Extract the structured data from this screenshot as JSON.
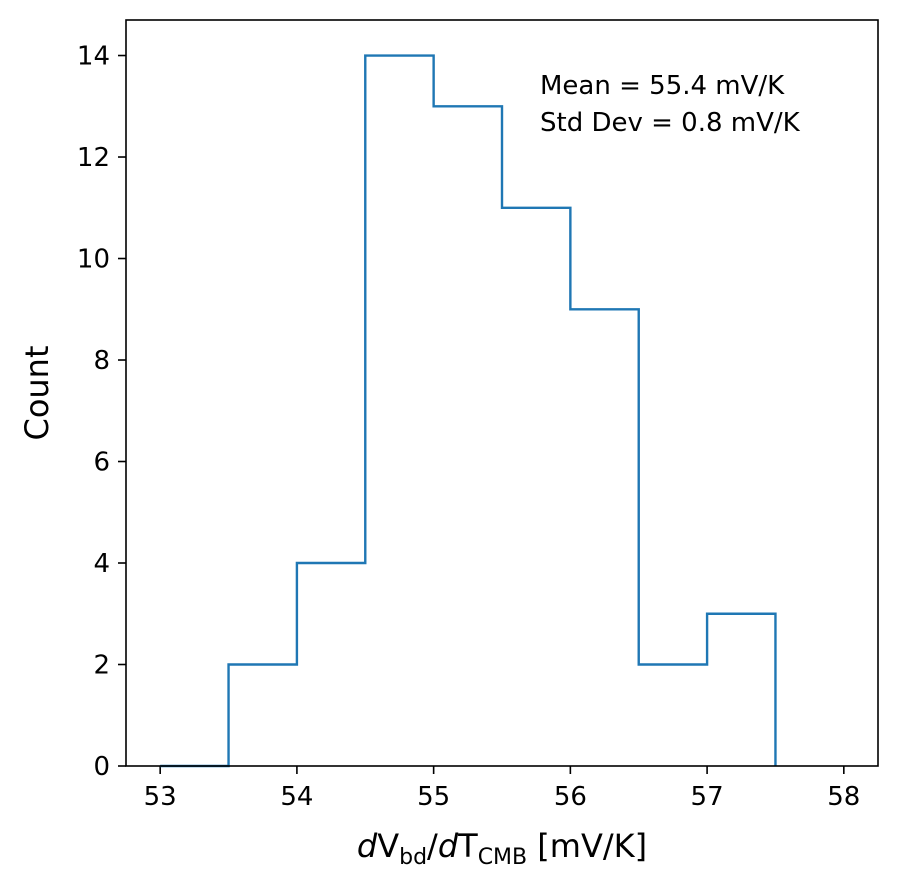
{
  "chart_data": {
    "type": "histogram",
    "bin_edges": [
      53.0,
      53.5,
      54.0,
      54.5,
      55.0,
      55.5,
      56.0,
      56.5,
      57.0,
      57.5
    ],
    "counts": [
      0,
      2,
      4,
      14,
      13,
      11,
      9,
      2,
      3
    ],
    "xlim": [
      52.75,
      58.25
    ],
    "ylim": [
      0,
      14.7
    ],
    "xticks": [
      53,
      54,
      55,
      56,
      57,
      58
    ],
    "yticks": [
      0,
      2,
      4,
      6,
      8,
      10,
      12,
      14
    ],
    "xlabel": {
      "part1": "d",
      "part2": "V",
      "sub1": "bd",
      "part3": "/",
      "part4": "d",
      "part5": "T",
      "sub2": "CMB",
      "part6": " [mV/K]"
    },
    "ylabel": "Count",
    "annotation": {
      "line1": "Mean = 55.4 mV/K",
      "line2": "Std Dev = 0.8 mV/K"
    },
    "colors": {
      "series": "#1f77b4",
      "axes": "#000000"
    },
    "grid": false
  }
}
